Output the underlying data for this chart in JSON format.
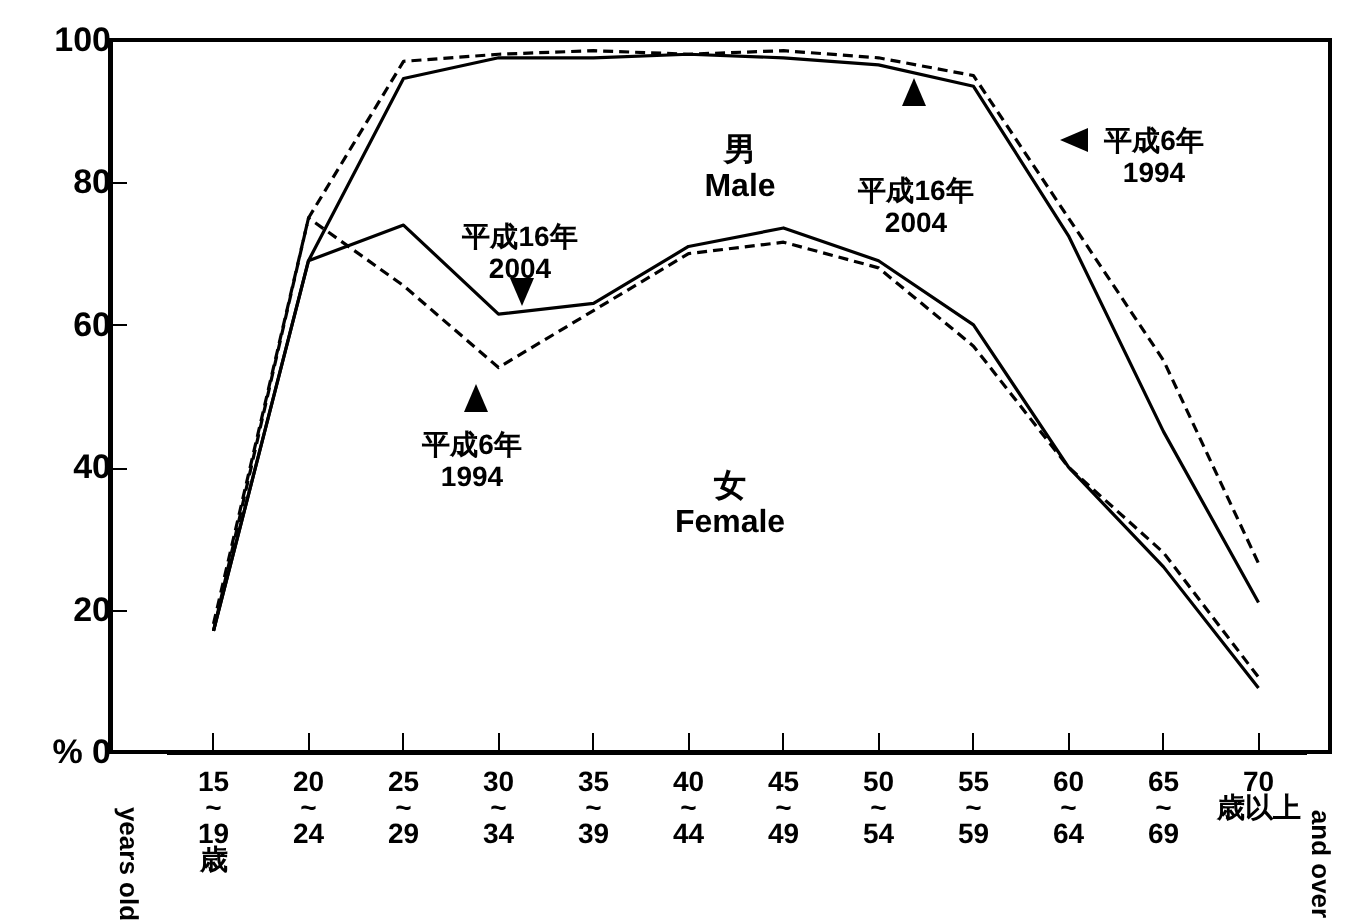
{
  "chart_data": {
    "type": "line",
    "categories": [
      "15\n~\n19\n歳",
      "20\n~\n24",
      "25\n~\n29",
      "30\n~\n34",
      "35\n~\n39",
      "40\n~\n44",
      "45\n~\n49",
      "50\n~\n54",
      "55\n~\n59",
      "60\n~\n64",
      "65\n~\n69",
      "70\n歳以上"
    ],
    "series": [
      {
        "color": "#000000",
        "line_style": "solid",
        "values": [
          17,
          69,
          94.6,
          97.5,
          97.5,
          98,
          97.5,
          96.5,
          93.5,
          72.5,
          45,
          21
        ]
      },
      {
        "color": "#000000",
        "line_style": "dashed",
        "values": [
          18,
          75,
          97,
          98,
          98.5,
          98,
          98.5,
          97.5,
          95,
          75,
          55,
          26.5
        ]
      },
      {
        "color": "#000000",
        "line_style": "solid",
        "values": [
          17,
          69,
          74,
          61.5,
          63,
          71,
          73.6,
          69,
          60,
          40,
          26,
          9
        ]
      },
      {
        "color": "#000000",
        "line_style": "dashed",
        "values": [
          17,
          75,
          65.5,
          54,
          62,
          70,
          71.6,
          68,
          57,
          40,
          28,
          10.5
        ]
      }
    ],
    "ylim": [
      0,
      100
    ],
    "yticks": [
      {
        "value": 0,
        "label": "% 0"
      },
      20,
      40,
      60,
      80,
      100
    ],
    "grid": false,
    "annotations": [
      "男\nMale",
      "平成16年\n2004",
      "平成6年\n1994",
      "平成16年\n2004",
      "平成6年\n1994",
      "女\nFemale",
      "years old",
      "and over"
    ]
  }
}
